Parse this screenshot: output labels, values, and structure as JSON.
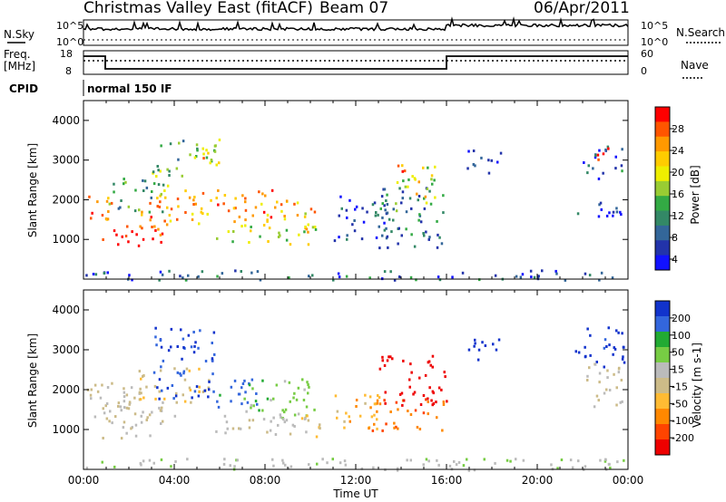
{
  "header": {
    "title": "Christmas Valley East (fitACF)",
    "beam": "Beam 07",
    "date": "06/Apr/2011"
  },
  "top_panels": {
    "nsky_label": "N.Sky",
    "nsky_ticks": [
      "10^5",
      "10^0"
    ],
    "nsearch_label": "N.Search",
    "nsearch_ticks": [
      "10^5",
      "10^0"
    ],
    "freq_label": "Freq.",
    "freq_unit": "[MHz]",
    "freq_ticks": [
      "18",
      "8"
    ],
    "nave_label": "Nave",
    "nave_ticks": [
      "60",
      "0"
    ],
    "cpid_label": "CPID",
    "cpid_value": "normal 150 IF"
  },
  "chart_data": [
    {
      "type": "heatmap",
      "panel": "power",
      "ylabel": "Slant Range [km]",
      "xlabel": "Time UT",
      "ylim": [
        0,
        4500
      ],
      "xlim_hours": [
        0,
        24
      ],
      "yticks": [
        "1000",
        "2000",
        "3000",
        "4000"
      ],
      "xticks": [
        "00:00",
        "04:00",
        "08:00",
        "12:00",
        "16:00",
        "20:00",
        "00:00"
      ],
      "colorbar_label": "Power [dB]",
      "colorbar_ticks": [
        "28",
        "24",
        "20",
        "16",
        "12",
        "8",
        "4"
      ],
      "colorbar_colors": [
        "#ff0000",
        "#ff5500",
        "#ff9900",
        "#ffcc00",
        "#eeee00",
        "#99cc33",
        "#33aa44",
        "#338866",
        "#336699",
        "#2233aa",
        "#1111ff"
      ],
      "regions": [
        {
          "t": [
            0.0,
            1.2
          ],
          "r": [
            1400,
            2200
          ],
          "v": 24
        },
        {
          "t": [
            0.8,
            3.5
          ],
          "r": [
            800,
            1600
          ],
          "v": 28
        },
        {
          "t": [
            2.5,
            5.8
          ],
          "r": [
            1400,
            2400
          ],
          "v": 22
        },
        {
          "t": [
            1.0,
            3.5
          ],
          "r": [
            1700,
            2600
          ],
          "v": 12
        },
        {
          "t": [
            3.0,
            5.8
          ],
          "r": [
            2600,
            3600
          ],
          "v": 14
        },
        {
          "t": [
            5.2,
            6.0
          ],
          "r": [
            2900,
            3700
          ],
          "v": 22
        },
        {
          "t": [
            5.8,
            8.5
          ],
          "r": [
            1400,
            2300
          ],
          "v": 24
        },
        {
          "t": [
            8.0,
            10.2
          ],
          "r": [
            1200,
            2100
          ],
          "v": 22
        },
        {
          "t": [
            5.8,
            10.2
          ],
          "r": [
            900,
            1400
          ],
          "v": 16
        },
        {
          "t": [
            11.0,
            13.5
          ],
          "r": [
            1000,
            2200
          ],
          "v": 6
        },
        {
          "t": [
            13.0,
            16.0
          ],
          "r": [
            800,
            2500
          ],
          "v": 10
        },
        {
          "t": [
            13.5,
            15.5
          ],
          "r": [
            1900,
            2900
          ],
          "v": 18
        },
        {
          "t": [
            13.8,
            14.3
          ],
          "r": [
            2500,
            3100
          ],
          "v": 24
        },
        {
          "t": [
            16.8,
            18.5
          ],
          "r": [
            2700,
            3300
          ],
          "v": 6
        },
        {
          "t": [
            21.5,
            23.8
          ],
          "r": [
            1500,
            2000
          ],
          "v": 6
        },
        {
          "t": [
            22.0,
            23.8
          ],
          "r": [
            2500,
            3400
          ],
          "v": 8
        },
        {
          "t": [
            22.6,
            23.2
          ],
          "r": [
            2800,
            3400
          ],
          "v": 28
        },
        {
          "t": [
            0.0,
            24.0
          ],
          "r": [
            0,
            250
          ],
          "v": 8
        }
      ]
    },
    {
      "type": "heatmap",
      "panel": "velocity",
      "ylabel": "Slant Range [km]",
      "xlabel": "Time UT",
      "ylim": [
        0,
        4500
      ],
      "xlim_hours": [
        0,
        24
      ],
      "yticks": [
        "1000",
        "2000",
        "3000",
        "4000"
      ],
      "xticks": [
        "00:00",
        "04:00",
        "08:00",
        "12:00",
        "16:00",
        "20:00",
        "00:00"
      ],
      "colorbar_label": "Velocity [m s-1]",
      "colorbar_ticks": [
        "200",
        "100",
        "50",
        "15",
        "-15",
        "-50",
        "-100",
        "-200"
      ],
      "colorbar_colors": [
        "#1133cc",
        "#3366dd",
        "#22aa33",
        "#77cc44",
        "#bbbbbb",
        "#ccbb88",
        "#ffbb33",
        "#ff8800",
        "#ff4400",
        "#ee0000"
      ],
      "regions": [
        {
          "t": [
            0.0,
            2.5
          ],
          "r": [
            1200,
            2200
          ],
          "v": 0
        },
        {
          "t": [
            0.8,
            4.0
          ],
          "r": [
            800,
            1800
          ],
          "v": 0
        },
        {
          "t": [
            2.0,
            5.5
          ],
          "r": [
            1700,
            2600
          ],
          "v": -30
        },
        {
          "t": [
            3.0,
            5.8
          ],
          "r": [
            1800,
            3600
          ],
          "v": 180
        },
        {
          "t": [
            5.8,
            8.0
          ],
          "r": [
            1500,
            2300
          ],
          "v": 150
        },
        {
          "t": [
            7.0,
            10.2
          ],
          "r": [
            1300,
            2300
          ],
          "v": 60
        },
        {
          "t": [
            5.8,
            10.2
          ],
          "r": [
            900,
            1500
          ],
          "v": 20
        },
        {
          "t": [
            9.5,
            10.5
          ],
          "r": [
            800,
            1400
          ],
          "v": -60
        },
        {
          "t": [
            11.0,
            13.5
          ],
          "r": [
            1000,
            1900
          ],
          "v": -70
        },
        {
          "t": [
            12.5,
            16.0
          ],
          "r": [
            1000,
            1800
          ],
          "v": -120
        },
        {
          "t": [
            13.0,
            16.0
          ],
          "r": [
            1600,
            2900
          ],
          "v": -220
        },
        {
          "t": [
            16.8,
            18.5
          ],
          "r": [
            2700,
            3300
          ],
          "v": 210
        },
        {
          "t": [
            21.5,
            23.8
          ],
          "r": [
            2600,
            3600
          ],
          "v": 200
        },
        {
          "t": [
            22.0,
            23.8
          ],
          "r": [
            1500,
            2700
          ],
          "v": 0
        },
        {
          "t": [
            0.0,
            24.0
          ],
          "r": [
            0,
            300
          ],
          "v": 30
        }
      ]
    }
  ]
}
